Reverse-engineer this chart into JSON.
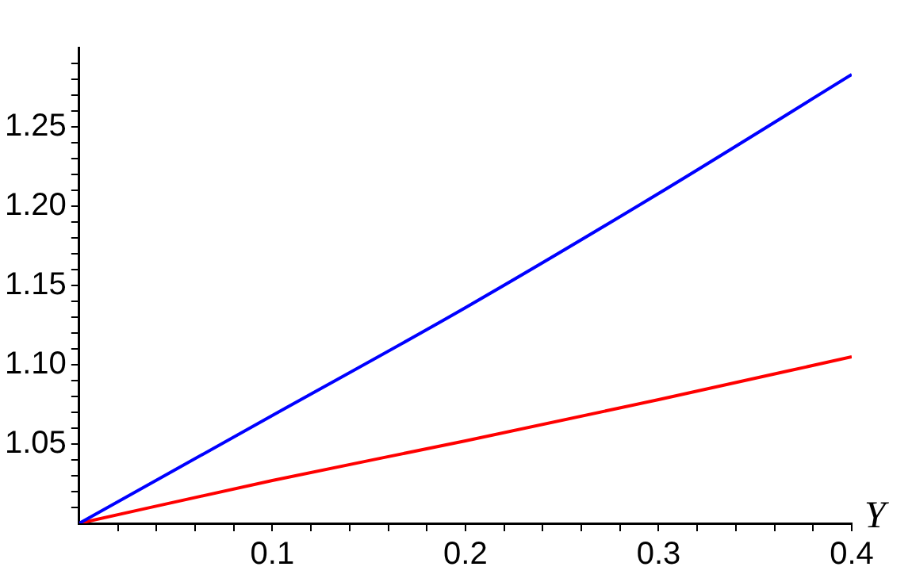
{
  "chart_data": {
    "type": "line",
    "xlabel": "Υ",
    "x": [
      0,
      0.1,
      0.2,
      0.3,
      0.4
    ],
    "series": [
      {
        "color": "#0000ff",
        "values": [
          1.0,
          1.068,
          1.136,
          1.208,
          1.283
        ]
      },
      {
        "color": "#ff0000",
        "values": [
          1.0,
          1.027,
          1.052,
          1.078,
          1.105
        ]
      }
    ],
    "xlim": [
      0,
      0.4
    ],
    "ylim": [
      1.0,
      1.3
    ],
    "xticks": [
      {
        "value": 0.02,
        "label": null
      },
      {
        "value": 0.04,
        "label": null
      },
      {
        "value": 0.06,
        "label": null
      },
      {
        "value": 0.08,
        "label": null
      },
      0.1,
      {
        "value": 0.12,
        "label": null
      },
      {
        "value": 0.14,
        "label": null
      },
      {
        "value": 0.16,
        "label": null
      },
      {
        "value": 0.18,
        "label": null
      },
      0.2,
      {
        "value": 0.22,
        "label": null
      },
      {
        "value": 0.24,
        "label": null
      },
      {
        "value": 0.26,
        "label": null
      },
      {
        "value": 0.28,
        "label": null
      },
      0.3,
      {
        "value": 0.32,
        "label": null
      },
      {
        "value": 0.34,
        "label": null
      },
      {
        "value": 0.36,
        "label": null
      },
      {
        "value": 0.38,
        "label": null
      },
      0.4
    ],
    "yticks": [
      {
        "value": 1.01,
        "label": null
      },
      {
        "value": 1.02,
        "label": null
      },
      {
        "value": 1.03,
        "label": null
      },
      {
        "value": 1.04,
        "label": null
      },
      {
        "value": 1.05,
        "label": "1.05"
      },
      {
        "value": 1.06,
        "label": null
      },
      {
        "value": 1.07,
        "label": null
      },
      {
        "value": 1.08,
        "label": null
      },
      {
        "value": 1.09,
        "label": null
      },
      {
        "value": 1.1,
        "label": "1.10"
      },
      {
        "value": 1.11,
        "label": null
      },
      {
        "value": 1.12,
        "label": null
      },
      {
        "value": 1.13,
        "label": null
      },
      {
        "value": 1.14,
        "label": null
      },
      {
        "value": 1.15,
        "label": "1.15"
      },
      {
        "value": 1.16,
        "label": null
      },
      {
        "value": 1.17,
        "label": null
      },
      {
        "value": 1.18,
        "label": null
      },
      {
        "value": 1.19,
        "label": null
      },
      {
        "value": 1.2,
        "label": "1.20"
      },
      {
        "value": 1.21,
        "label": null
      },
      {
        "value": 1.22,
        "label": null
      },
      {
        "value": 1.23,
        "label": null
      },
      {
        "value": 1.24,
        "label": null
      },
      {
        "value": 1.25,
        "label": "1.25"
      },
      {
        "value": 1.26,
        "label": null
      },
      {
        "value": 1.27,
        "label": null
      },
      {
        "value": 1.28,
        "label": null
      },
      {
        "value": 1.29,
        "label": null
      }
    ],
    "grid": false,
    "legend": false,
    "marker": "none",
    "line_style": "solid"
  }
}
